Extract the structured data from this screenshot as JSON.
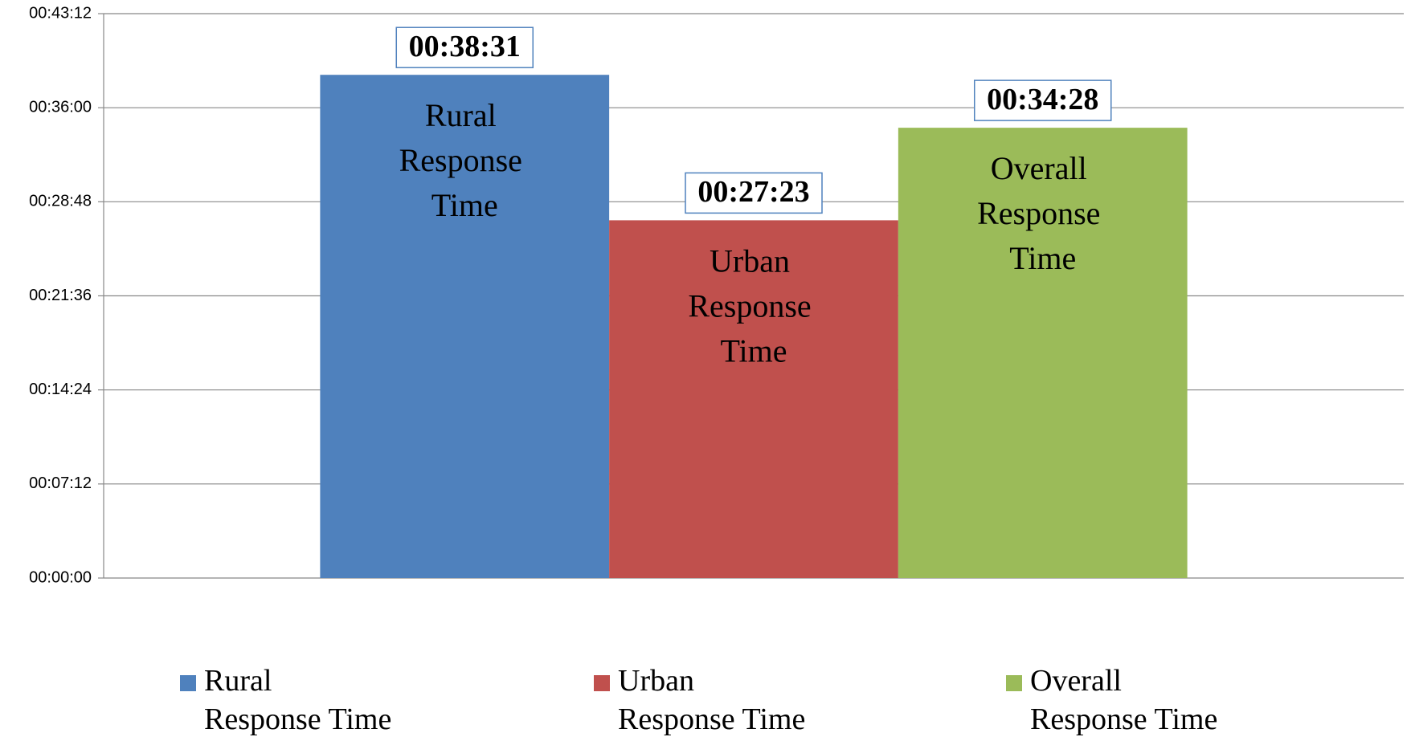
{
  "chart_data": {
    "type": "bar",
    "categories": [
      null
    ],
    "series": [
      {
        "name": "Rural Response Time",
        "color": "#4f81bd",
        "values": [
          2311
        ],
        "value_labels": [
          "00:38:31"
        ]
      },
      {
        "name": "Urban Response Time",
        "color": "#c0504d",
        "values": [
          1643
        ],
        "value_labels": [
          "00:27:23"
        ]
      },
      {
        "name": "Overall Response Time",
        "color": "#9bbb59",
        "values": [
          2068
        ],
        "value_labels": [
          "00:34:28"
        ]
      }
    ],
    "ylim": [
      0,
      2592
    ],
    "yticks": [
      {
        "value": 0,
        "label": "00:00:00"
      },
      {
        "value": 432,
        "label": "00:07:12"
      },
      {
        "value": 864,
        "label": "00:14:24"
      },
      {
        "value": 1296,
        "label": "00:21:36"
      },
      {
        "value": 1728,
        "label": "00:28:48"
      },
      {
        "value": 2160,
        "label": "00:36:00"
      },
      {
        "value": 2592,
        "label": "00:43:12"
      }
    ],
    "grid": true,
    "legend": "bottom"
  }
}
